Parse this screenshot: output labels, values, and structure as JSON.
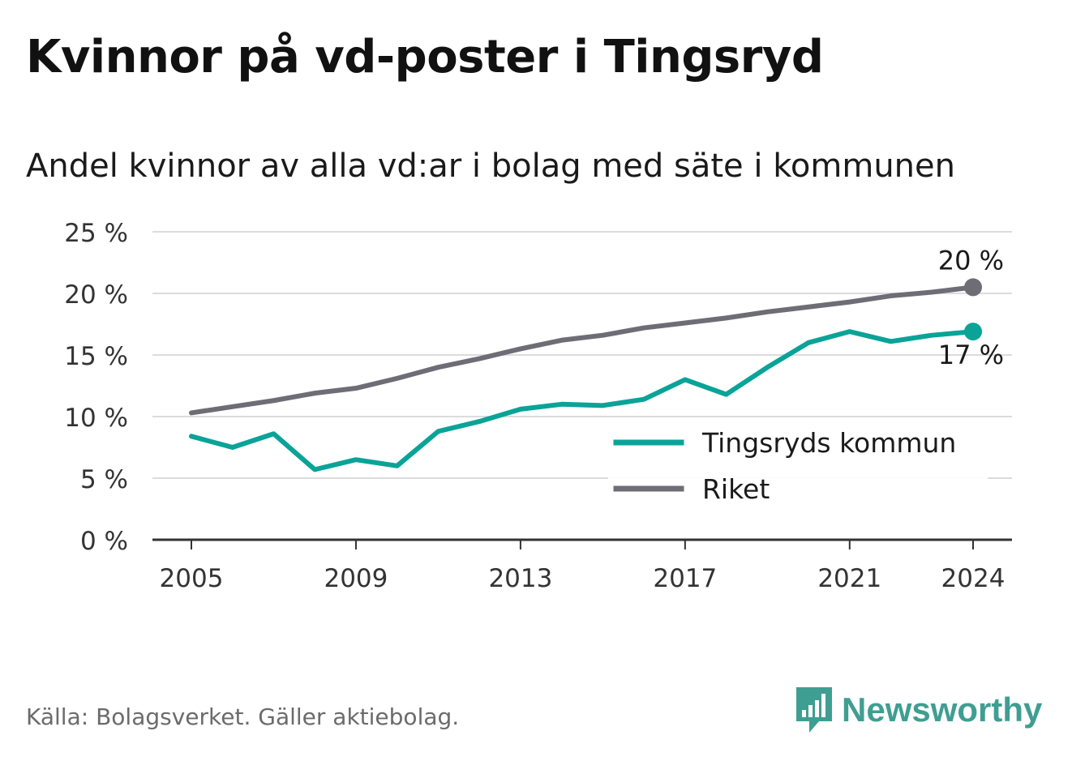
{
  "title": "Kvinnor på vd-poster i Tingsryd",
  "subtitle": "Andel kvinnor av alla vd:ar i bolag med säte i kommunen",
  "source": "Källa: Bolagsverket. Gäller aktiebolag.",
  "brand": "Newsworthy",
  "colors": {
    "tingsryd": "#0aa398",
    "riket": "#6e6d75",
    "grid": "#dcdcdc",
    "axis": "#333333",
    "brand": "#3f9e92"
  },
  "chart_data": {
    "type": "line",
    "x": [
      2005,
      2006,
      2007,
      2008,
      2009,
      2010,
      2011,
      2012,
      2013,
      2014,
      2015,
      2016,
      2017,
      2018,
      2019,
      2020,
      2021,
      2022,
      2023,
      2024
    ],
    "series": [
      {
        "name": "Tingsryds kommun",
        "color": "#0aa398",
        "values": [
          8.4,
          7.5,
          8.6,
          5.7,
          6.5,
          6.0,
          8.8,
          9.6,
          10.6,
          11.0,
          10.9,
          11.4,
          13.0,
          11.8,
          14.0,
          16.0,
          16.9,
          16.1,
          16.6,
          16.9
        ],
        "end_label": "17 %"
      },
      {
        "name": "Riket",
        "color": "#6e6d75",
        "values": [
          10.3,
          10.8,
          11.3,
          11.9,
          12.3,
          13.1,
          14.0,
          14.7,
          15.5,
          16.2,
          16.6,
          17.2,
          17.6,
          18.0,
          18.5,
          18.9,
          19.3,
          19.8,
          20.1,
          20.5
        ],
        "end_label": "20 %"
      }
    ],
    "xticks": [
      "2005",
      "2009",
      "2013",
      "2017",
      "2021",
      "2024"
    ],
    "yticks": [
      "0 %",
      "5 %",
      "10 %",
      "15 %",
      "20 %",
      "25 %"
    ],
    "ylim": [
      0,
      25
    ],
    "grid": true,
    "legend_position": "bottom-right"
  }
}
